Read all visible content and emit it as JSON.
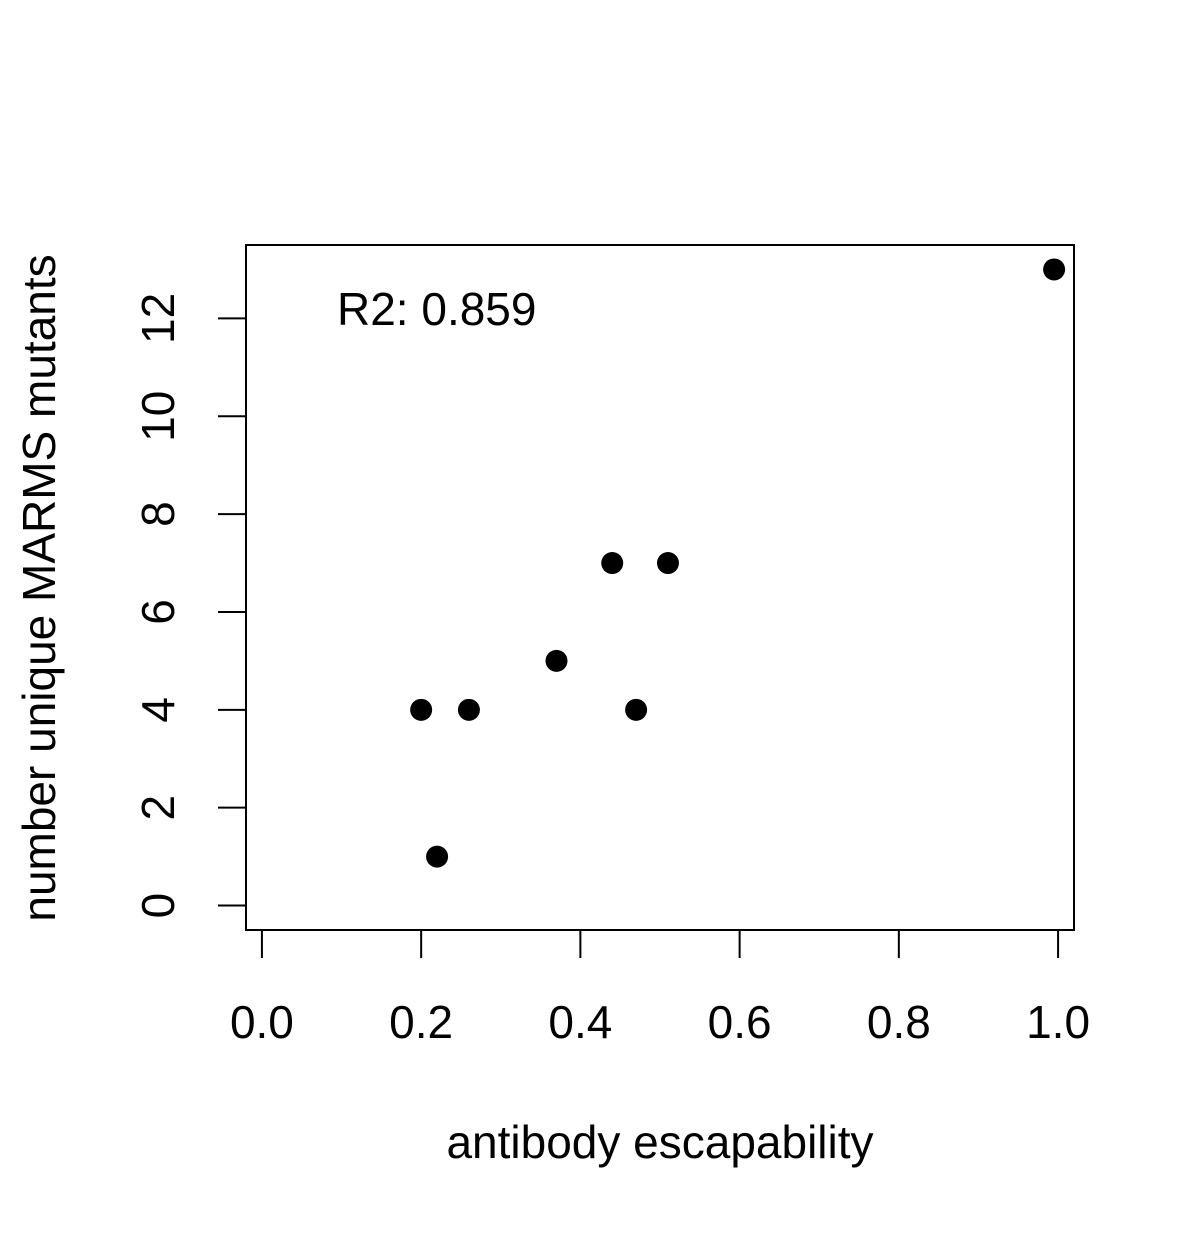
{
  "chart_data": {
    "type": "scatter",
    "title": "",
    "xlabel": "antibody escapability",
    "ylabel": "number unique MARMS mutants",
    "xlim": [
      -0.02,
      1.02
    ],
    "ylim": [
      -0.5,
      13.5
    ],
    "x_ticks": [
      0.0,
      0.2,
      0.4,
      0.6,
      0.8,
      1.0
    ],
    "x_tick_labels": [
      "0.0",
      "0.2",
      "0.4",
      "0.6",
      "0.8",
      "1.0"
    ],
    "y_ticks": [
      0,
      2,
      4,
      6,
      8,
      10,
      12
    ],
    "y_tick_labels": [
      "0",
      "2",
      "4",
      "6",
      "8",
      "10",
      "12"
    ],
    "grid": false,
    "legend": "none",
    "annotation": "R2: 0.859",
    "point_color": "#000000",
    "points": [
      {
        "x": 0.2,
        "y": 4
      },
      {
        "x": 0.22,
        "y": 1
      },
      {
        "x": 0.26,
        "y": 4
      },
      {
        "x": 0.37,
        "y": 5
      },
      {
        "x": 0.44,
        "y": 7
      },
      {
        "x": 0.47,
        "y": 4
      },
      {
        "x": 0.51,
        "y": 7
      },
      {
        "x": 0.995,
        "y": 13
      }
    ]
  }
}
